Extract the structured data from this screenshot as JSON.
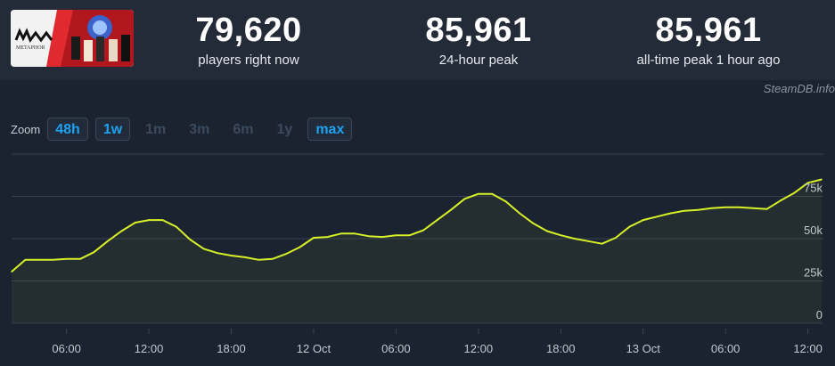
{
  "stats": [
    {
      "value": "79,620",
      "label": "players right now"
    },
    {
      "value": "85,961",
      "label": "24-hour peak"
    },
    {
      "value": "85,961",
      "label": "all-time peak 1 hour ago"
    }
  ],
  "credit": "SteamDB.info",
  "zoom": {
    "label": "Zoom",
    "options": [
      {
        "label": "48h",
        "active": true
      },
      {
        "label": "1w",
        "active": true
      },
      {
        "label": "1m",
        "active": false
      },
      {
        "label": "3m",
        "active": false
      },
      {
        "label": "6m",
        "active": false
      },
      {
        "label": "1y",
        "active": false
      },
      {
        "label": "max",
        "active": true
      }
    ]
  },
  "colors": {
    "line": "#d7f028",
    "accent": "#1fa2f2",
    "background": "#1b2330"
  },
  "chart_data": {
    "type": "area",
    "x_tick_labels": [
      "06:00",
      "12:00",
      "18:00",
      "12 Oct",
      "06:00",
      "12:00",
      "18:00",
      "13 Oct",
      "06:00",
      "12:00"
    ],
    "y_tick_labels": [
      "0",
      "25k",
      "50k",
      "75k"
    ],
    "ylim": [
      0,
      100000
    ],
    "grid": true,
    "series": [
      {
        "x_hours": [
          0,
          1,
          2,
          3,
          4,
          5,
          6,
          7,
          8,
          9,
          10,
          11,
          12,
          13,
          14,
          15,
          16,
          17,
          18,
          19,
          20,
          21,
          22,
          23,
          24,
          25,
          26,
          27,
          28,
          29,
          30,
          31,
          32,
          33,
          34,
          35,
          36,
          37,
          38,
          39,
          40,
          41,
          42,
          43,
          44,
          45,
          46,
          47,
          48,
          49,
          50,
          51,
          52,
          53,
          54,
          55,
          56,
          57,
          58,
          59
        ],
        "values": [
          30500,
          37500,
          37500,
          37500,
          38000,
          38000,
          42000,
          48500,
          54500,
          59500,
          61000,
          61000,
          57000,
          49500,
          44000,
          41500,
          40000,
          39000,
          37500,
          38000,
          41000,
          45000,
          50500,
          51000,
          53000,
          53000,
          51500,
          51000,
          52000,
          52000,
          55000,
          61000,
          67000,
          73500,
          76500,
          76500,
          72000,
          65000,
          59000,
          54500,
          52000,
          50000,
          48500,
          47000,
          50500,
          57000,
          61000,
          63000,
          65000,
          66500,
          67000,
          68000,
          68500,
          68500,
          68000,
          67500,
          72500,
          77000,
          83000,
          85000
        ]
      }
    ]
  }
}
